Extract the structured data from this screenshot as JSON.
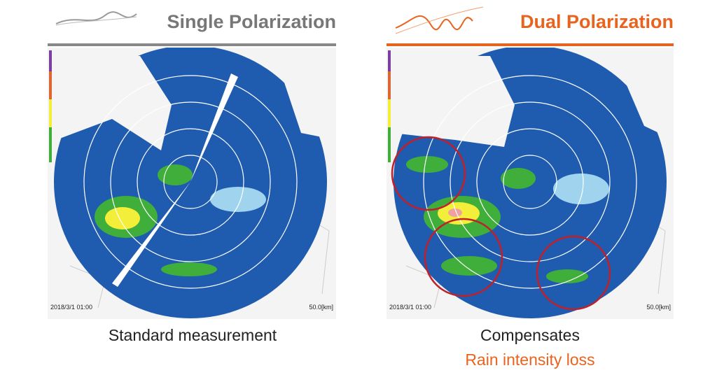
{
  "panels": [
    {
      "title": "Single Polarization",
      "timestamp": "2018/3/1 01:00",
      "scale": "50.0[km]",
      "caption": [
        "Standard measurement"
      ]
    },
    {
      "title": "Dual Polarization",
      "timestamp": "2018/3/1 01:00",
      "scale": "50.0[km]",
      "caption": [
        "Compensates",
        "Rain intensity loss"
      ]
    }
  ]
}
